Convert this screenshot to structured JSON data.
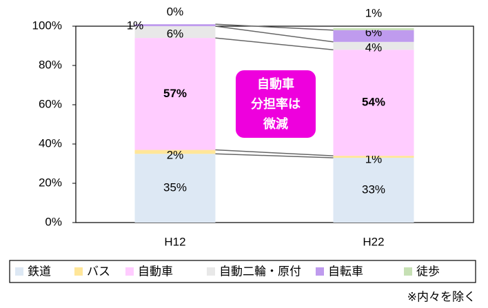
{
  "chart_data": {
    "type": "stacked_bar",
    "categories": [
      "H12",
      "H22"
    ],
    "series": [
      {
        "name": "鉄道",
        "color": "#dde8f4",
        "values": [
          35,
          33
        ],
        "value_labels": [
          "35%",
          "33%"
        ]
      },
      {
        "name": "バス",
        "color": "#ffe699",
        "values": [
          2,
          1
        ],
        "value_labels": [
          "2%",
          "1%"
        ]
      },
      {
        "name": "自動車",
        "color": "#ffccff",
        "values": [
          57,
          54
        ],
        "value_labels": [
          "57%",
          "54%"
        ]
      },
      {
        "name": "自動二輪・原付",
        "color": "#e8e8e8",
        "values": [
          6,
          4
        ],
        "value_labels": [
          "6%",
          "4%"
        ]
      },
      {
        "name": "自転車",
        "color": "#bf9bee",
        "values": [
          1,
          6
        ],
        "value_labels": [
          "1%",
          "6%"
        ]
      },
      {
        "name": "徒歩",
        "color": "#c6e0b4",
        "values": [
          0,
          1
        ],
        "value_labels": [
          "0%",
          "1%"
        ]
      }
    ],
    "ylim": [
      0,
      100
    ],
    "yticks": [
      {
        "value": 0,
        "label": "0%"
      },
      {
        "value": 20,
        "label": "20%"
      },
      {
        "value": 40,
        "label": "40%"
      },
      {
        "value": 60,
        "label": "60%"
      },
      {
        "value": 80,
        "label": "80%"
      },
      {
        "value": 100,
        "label": "100%"
      }
    ],
    "annotation": [
      "自動車",
      "分担率は",
      "微減"
    ],
    "footnote": "※内々を除く"
  }
}
